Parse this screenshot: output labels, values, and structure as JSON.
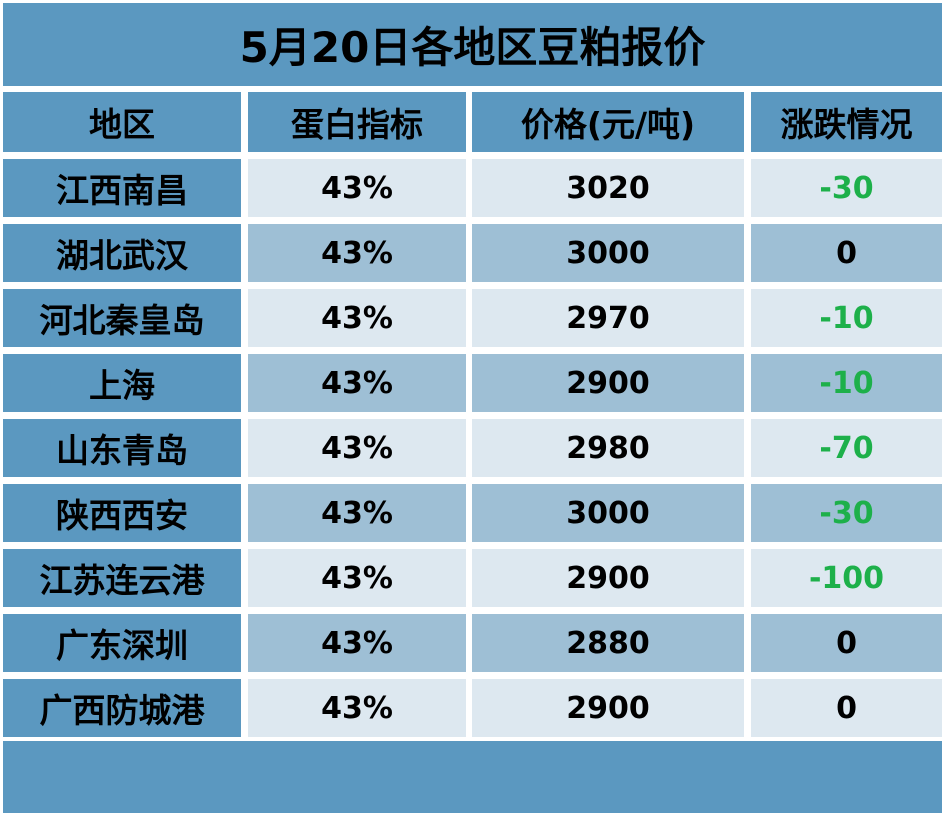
{
  "title": "5月20日各地区豆粕报价",
  "columns": [
    "地区",
    "蛋白指标",
    "价格(元/吨)",
    "涨跌情况"
  ],
  "rows": [
    {
      "region": "江西南昌",
      "protein": "43%",
      "price": "3020",
      "change": "-30"
    },
    {
      "region": "湖北武汉",
      "protein": "43%",
      "price": "3000",
      "change": "0"
    },
    {
      "region": "河北秦皇岛",
      "protein": "43%",
      "price": "2970",
      "change": "-10"
    },
    {
      "region": "上海",
      "protein": "43%",
      "price": "2900",
      "change": "-10"
    },
    {
      "region": "山东青岛",
      "protein": "43%",
      "price": "2980",
      "change": "-70"
    },
    {
      "region": "陕西西安",
      "protein": "43%",
      "price": "3000",
      "change": "-30"
    },
    {
      "region": "江苏连云港",
      "protein": "43%",
      "price": "2900",
      "change": "-100"
    },
    {
      "region": "广东深圳",
      "protein": "43%",
      "price": "2880",
      "change": "0"
    },
    {
      "region": "广西防城港",
      "protein": "43%",
      "price": "2900",
      "change": "0"
    }
  ],
  "colors": {
    "header_bg": "#5b98c0",
    "cell_light": "#dde8f0",
    "cell_mid": "#9ebfd5",
    "change_down": "#1db04a",
    "change_flat": "#000000"
  }
}
